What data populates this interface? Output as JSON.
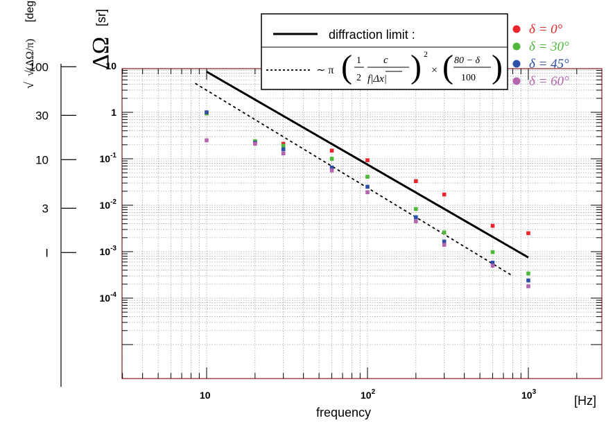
{
  "chart_data": {
    "type": "scatter",
    "x": [
      10,
      20,
      30,
      60,
      100,
      200,
      300,
      600,
      1000
    ],
    "xlim": [
      3,
      3000
    ],
    "ylim": [
      2e-05,
      50
    ],
    "xscale": "log",
    "yscale": "log",
    "grid": true,
    "legend_position": "top-right",
    "x_unit": "[Hz]",
    "xlabel": "frequency",
    "ylabel": "ΔΩ",
    "y_unit": "[sr]",
    "secondary_axis": {
      "label_expr": "√(ΔΩ/π)",
      "unit": "[deg",
      "tick_values": [
        100,
        30,
        10,
        3,
        1
      ],
      "tick_labels": [
        "100",
        "30",
        "10",
        "3",
        "I"
      ]
    },
    "x_tick_labels": [
      {
        "value": 10,
        "base": "10",
        "exp": ""
      },
      {
        "value": 100,
        "base": "10",
        "exp": "2"
      },
      {
        "value": 1000,
        "base": "10",
        "exp": "3"
      }
    ],
    "y_tick_labels": [
      {
        "value": 10,
        "base": "10",
        "exp": ""
      },
      {
        "value": 1,
        "base": "1",
        "exp": ""
      },
      {
        "value": 0.1,
        "base": "10",
        "exp": "-1"
      },
      {
        "value": 0.01,
        "base": "10",
        "exp": "-2"
      },
      {
        "value": 0.001,
        "base": "10",
        "exp": "-3"
      },
      {
        "value": 0.0001,
        "base": "10",
        "exp": "-4"
      }
    ],
    "series": [
      {
        "name": "δ = 0°",
        "color": "#e8262b",
        "values": [
          0.95,
          0.23,
          0.21,
          0.15,
          0.093,
          0.033,
          0.017,
          0.0036,
          0.0025
        ]
      },
      {
        "name": "δ = 30°",
        "color": "#4fb83b",
        "values": [
          0.95,
          0.24,
          0.19,
          0.1,
          0.041,
          0.0083,
          0.0026,
          0.00098,
          0.00034
        ]
      },
      {
        "name": "δ = 45°",
        "color": "#2d4fa8",
        "values": [
          1.0,
          0.22,
          0.16,
          0.065,
          0.025,
          0.0055,
          0.00165,
          0.00058,
          0.00024
        ]
      },
      {
        "name": "δ = 60°",
        "color": "#b564b0",
        "values": [
          0.25,
          0.21,
          0.13,
          0.056,
          0.019,
          0.0045,
          0.0014,
          0.0005,
          0.00018
        ]
      }
    ],
    "lines": [
      {
        "name": "diffraction limit :",
        "style": "solid",
        "color": "#000000",
        "x": [
          10,
          1000
        ],
        "y": [
          7.5,
          0.00075
        ]
      },
      {
        "name": "~ π (½ c / f|Δx|)² × ((80 − δ)/100)",
        "style": "dashed",
        "color": "#000000",
        "x": [
          8.5,
          800
        ],
        "y": [
          4.2,
          0.0003
        ]
      }
    ]
  }
}
